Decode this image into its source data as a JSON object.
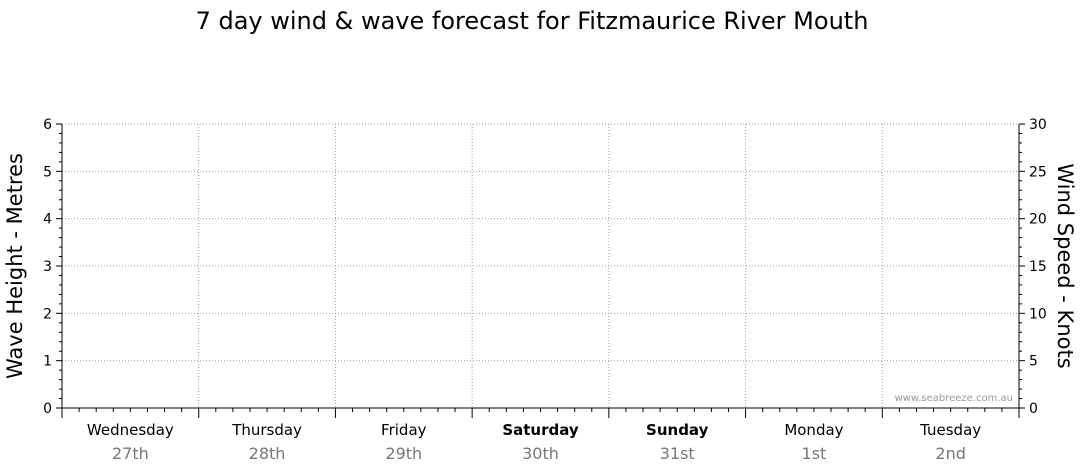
{
  "chart_data": {
    "type": "line",
    "title": "7 day wind & wave forecast for Fitzmaurice River Mouth",
    "ylabel_left": "Wave Height - Metres",
    "ylabel_right": "Wind Speed - Knots",
    "ylim_left": [
      0,
      6
    ],
    "ylim_right": [
      0,
      30
    ],
    "yticks_left": [
      "0",
      "1",
      "2",
      "3",
      "4",
      "5",
      "6"
    ],
    "yticks_right": [
      "0",
      "5",
      "10",
      "15",
      "20",
      "25",
      "30"
    ],
    "days": [
      {
        "name": "Wednesday",
        "date": "27th",
        "bold": false
      },
      {
        "name": "Thursday",
        "date": "28th",
        "bold": false
      },
      {
        "name": "Friday",
        "date": "29th",
        "bold": false
      },
      {
        "name": "Saturday",
        "date": "30th",
        "bold": true
      },
      {
        "name": "Sunday",
        "date": "31st",
        "bold": true
      },
      {
        "name": "Monday",
        "date": "1st",
        "bold": false
      },
      {
        "name": "Tuesday",
        "date": "2nd",
        "bold": false
      }
    ],
    "series": [],
    "grid": true,
    "watermark": "www.seabreeze.com.au"
  },
  "colors": {
    "grid": "#a0a0a0",
    "axis": "#000000",
    "date_text": "#777777",
    "watermark": "#9a9a9a"
  }
}
